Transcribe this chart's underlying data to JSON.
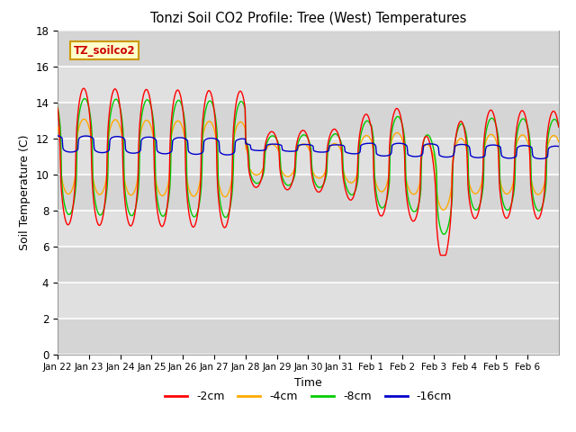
{
  "title": "Tonzi Soil CO2 Profile: Tree (West) Temperatures",
  "xlabel": "Time",
  "ylabel": "Soil Temperature (C)",
  "legend_label": "TZ_soilco2",
  "ylim": [
    0,
    18
  ],
  "yticks": [
    0,
    2,
    4,
    6,
    8,
    10,
    12,
    14,
    16,
    18
  ],
  "line_colors": {
    "-2cm": "#ff0000",
    "-4cm": "#ffaa00",
    "-8cm": "#00cc00",
    "-16cm": "#0000cc"
  },
  "line_labels": [
    "-2cm",
    "-4cm",
    "-8cm",
    "-16cm"
  ],
  "background_color": "#ffffff",
  "plot_bg_color": "#e0e0e0",
  "grid_color": "#ffffff",
  "tick_labels": [
    "Jan 22",
    "Jan 23",
    "Jan 24",
    "Jan 25",
    "Jan 26",
    "Jan 27",
    "Jan 28",
    "Jan 29",
    "Jan 30",
    "Jan 31",
    "Feb 1",
    "Feb 2",
    "Feb 3",
    "Feb 4",
    "Feb 5",
    "Feb 6"
  ],
  "num_days": 16,
  "pts_per_day": 48
}
